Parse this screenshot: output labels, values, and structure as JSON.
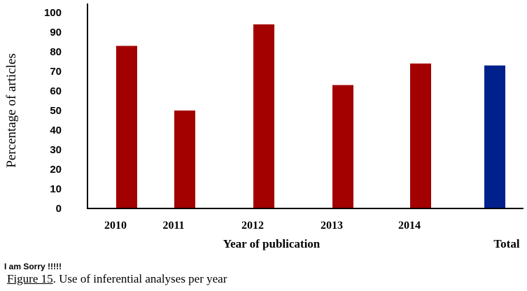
{
  "chart_data": {
    "type": "bar",
    "categories": [
      "2010",
      "2011",
      "2012",
      "2013",
      "2014",
      "Total"
    ],
    "values": [
      83,
      50,
      94,
      63,
      74,
      73
    ],
    "colors": [
      "#a30000",
      "#a30000",
      "#a30000",
      "#a30000",
      "#a30000",
      "#00208c"
    ],
    "xlabel": "Year of publication",
    "ylabel": "Percentage of articles",
    "ylim": [
      0,
      100
    ],
    "yticks": [
      "0",
      "10",
      "20",
      "30",
      "40",
      "50",
      "60",
      "70",
      "80",
      "90",
      "100"
    ],
    "grid": false
  },
  "note": "I am Sorry !!!!!",
  "caption": {
    "figure_number": "Figure 15",
    "text": ". Use of inferential analyses per year"
  }
}
